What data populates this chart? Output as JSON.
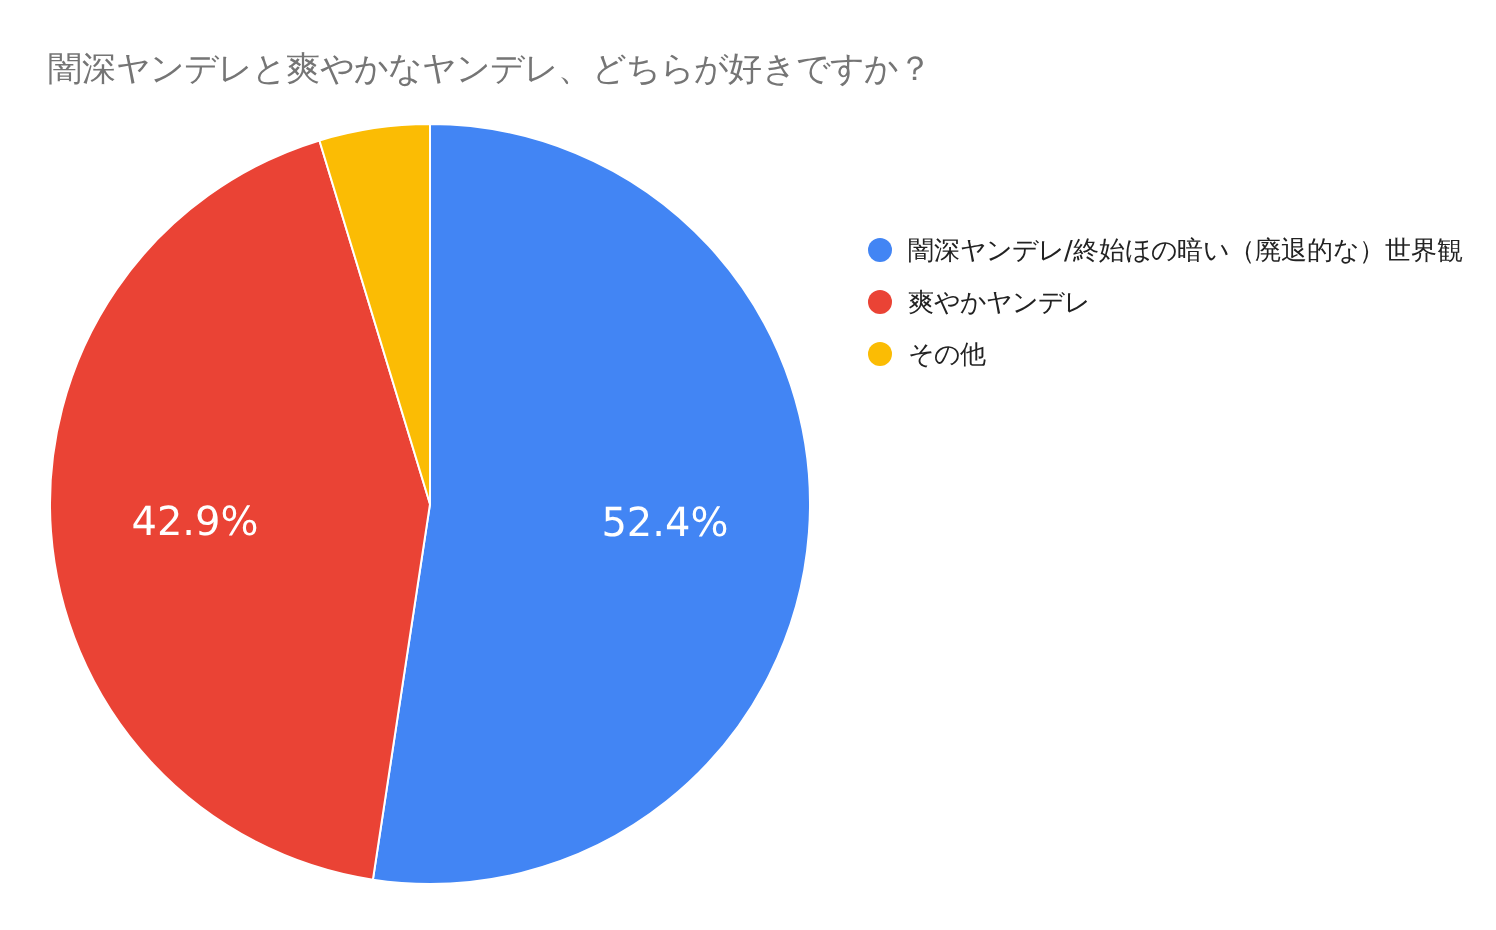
{
  "chart_data": {
    "type": "pie",
    "title": "闇深ヤンデレと爽やかなヤンデレ、どちらが好きですか？",
    "categories": [
      "闇深ヤンデレ/終始ほの暗い（廃退的な）世界観",
      "爽やかヤンデレ",
      "その他"
    ],
    "values": [
      52.4,
      42.9,
      4.7
    ],
    "colors": [
      "#4285f4",
      "#ea4335",
      "#fbbc04"
    ],
    "value_labels": [
      "52.4%",
      "42.9%",
      null
    ],
    "legend": "right"
  }
}
